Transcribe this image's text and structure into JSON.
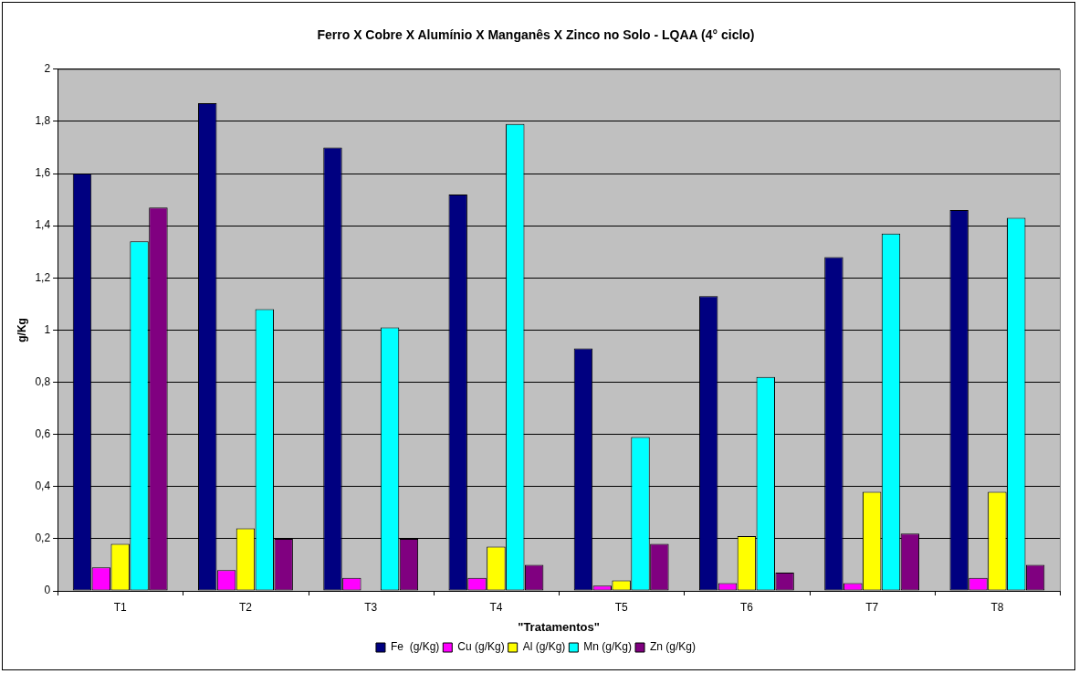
{
  "chart_data": {
    "type": "bar",
    "title": "Ferro X Cobre X Alumínio X Manganês X Zinco no Solo - LQAA (4° ciclo)",
    "xlabel": "\"Tratamentos\"",
    "ylabel": "g/Kg",
    "categories": [
      "T1",
      "T2",
      "T3",
      "T4",
      "T5",
      "T6",
      "T7",
      "T8"
    ],
    "series": [
      {
        "name": "Fe  (g/Kg)",
        "color": "#000080",
        "values": [
          1.6,
          1.87,
          1.7,
          1.52,
          0.93,
          1.13,
          1.28,
          1.46
        ]
      },
      {
        "name": "Cu (g/Kg)",
        "color": "#ff00ff",
        "values": [
          0.09,
          0.08,
          0.05,
          0.05,
          0.02,
          0.03,
          0.03,
          0.05
        ]
      },
      {
        "name": "Al (g/Kg)",
        "color": "#ffff00",
        "values": [
          0.18,
          0.24,
          null,
          0.17,
          0.04,
          0.21,
          0.38,
          0.38
        ]
      },
      {
        "name": "Mn (g/Kg)",
        "color": "#00ffff",
        "values": [
          1.34,
          1.08,
          1.01,
          1.79,
          0.59,
          0.82,
          1.37,
          1.43
        ]
      },
      {
        "name": "Zn (g/Kg)",
        "color": "#800080",
        "values": [
          1.47,
          0.2,
          0.2,
          0.1,
          0.18,
          0.07,
          0.22,
          0.1
        ]
      }
    ],
    "ylim": [
      0,
      2
    ],
    "yticks": [
      0,
      {
        "value": 0.2,
        "label": "0,2"
      },
      {
        "value": 0.4,
        "label": "0,4"
      },
      {
        "value": 0.6,
        "label": "0,6"
      },
      {
        "value": 0.8,
        "label": "0,8"
      },
      1,
      {
        "value": 1.2,
        "label": "1,2"
      },
      {
        "value": 1.4,
        "label": "1,4"
      },
      {
        "value": 1.6,
        "label": "1,6"
      },
      {
        "value": 1.8,
        "label": "1,8"
      },
      2
    ],
    "grid": "y",
    "legend": "bottom"
  }
}
